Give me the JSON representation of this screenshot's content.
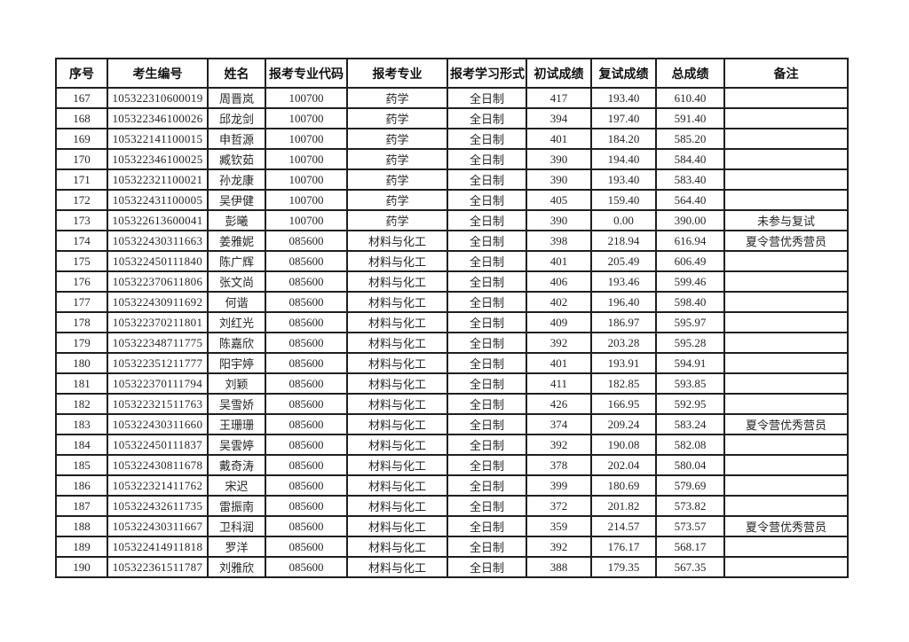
{
  "colors": {
    "background": "#ffffff",
    "border": "#1f1f1f",
    "text": "#262626",
    "header_text": "#111111"
  },
  "table": {
    "headers": [
      "序号",
      "考生编号",
      "姓名",
      "报考专业代码",
      "报考专业",
      "报考学习形式",
      "初试成绩",
      "复试成绩",
      "总成绩",
      "备注"
    ],
    "rows": [
      [
        "167",
        "105322310600019",
        "周晋岚",
        "100700",
        "药学",
        "全日制",
        "417",
        "193.40",
        "610.40",
        ""
      ],
      [
        "168",
        "105322346100026",
        "邱龙剑",
        "100700",
        "药学",
        "全日制",
        "394",
        "197.40",
        "591.40",
        ""
      ],
      [
        "169",
        "105322141100015",
        "申哲源",
        "100700",
        "药学",
        "全日制",
        "401",
        "184.20",
        "585.20",
        ""
      ],
      [
        "170",
        "105322346100025",
        "臧钦茹",
        "100700",
        "药学",
        "全日制",
        "390",
        "194.40",
        "584.40",
        ""
      ],
      [
        "171",
        "105322321100021",
        "孙龙康",
        "100700",
        "药学",
        "全日制",
        "390",
        "193.40",
        "583.40",
        ""
      ],
      [
        "172",
        "105322431100005",
        "吴伊健",
        "100700",
        "药学",
        "全日制",
        "405",
        "159.40",
        "564.40",
        ""
      ],
      [
        "173",
        "105322613600041",
        "彭曦",
        "100700",
        "药学",
        "全日制",
        "390",
        "0.00",
        "390.00",
        "未参与复试"
      ],
      [
        "174",
        "105322430311663",
        "姜雅妮",
        "085600",
        "材料与化工",
        "全日制",
        "398",
        "218.94",
        "616.94",
        "夏令营优秀营员"
      ],
      [
        "175",
        "105322450111840",
        "陈广辉",
        "085600",
        "材料与化工",
        "全日制",
        "401",
        "205.49",
        "606.49",
        ""
      ],
      [
        "176",
        "105322370611806",
        "张文尚",
        "085600",
        "材料与化工",
        "全日制",
        "406",
        "193.46",
        "599.46",
        ""
      ],
      [
        "177",
        "105322430911692",
        "何谐",
        "085600",
        "材料与化工",
        "全日制",
        "402",
        "196.40",
        "598.40",
        ""
      ],
      [
        "178",
        "105322370211801",
        "刘红光",
        "085600",
        "材料与化工",
        "全日制",
        "409",
        "186.97",
        "595.97",
        ""
      ],
      [
        "179",
        "105322348711775",
        "陈嘉欣",
        "085600",
        "材料与化工",
        "全日制",
        "392",
        "203.28",
        "595.28",
        ""
      ],
      [
        "180",
        "105322351211777",
        "阳宇婷",
        "085600",
        "材料与化工",
        "全日制",
        "401",
        "193.91",
        "594.91",
        ""
      ],
      [
        "181",
        "105322370111794",
        "刘颖",
        "085600",
        "材料与化工",
        "全日制",
        "411",
        "182.85",
        "593.85",
        ""
      ],
      [
        "182",
        "105322321511763",
        "吴雪娇",
        "085600",
        "材料与化工",
        "全日制",
        "426",
        "166.95",
        "592.95",
        ""
      ],
      [
        "183",
        "105322430311660",
        "王珊珊",
        "085600",
        "材料与化工",
        "全日制",
        "374",
        "209.24",
        "583.24",
        "夏令营优秀营员"
      ],
      [
        "184",
        "105322450111837",
        "吴雲婷",
        "085600",
        "材料与化工",
        "全日制",
        "392",
        "190.08",
        "582.08",
        ""
      ],
      [
        "185",
        "105322430811678",
        "戴奇涛",
        "085600",
        "材料与化工",
        "全日制",
        "378",
        "202.04",
        "580.04",
        ""
      ],
      [
        "186",
        "105322321411762",
        "宋迟",
        "085600",
        "材料与化工",
        "全日制",
        "399",
        "180.69",
        "579.69",
        ""
      ],
      [
        "187",
        "105322432611735",
        "雷振南",
        "085600",
        "材料与化工",
        "全日制",
        "372",
        "201.82",
        "573.82",
        ""
      ],
      [
        "188",
        "105322430311667",
        "卫科润",
        "085600",
        "材料与化工",
        "全日制",
        "359",
        "214.57",
        "573.57",
        "夏令营优秀营员"
      ],
      [
        "189",
        "105322414911818",
        "罗洋",
        "085600",
        "材料与化工",
        "全日制",
        "392",
        "176.17",
        "568.17",
        ""
      ],
      [
        "190",
        "105322361511787",
        "刘雅欣",
        "085600",
        "材料与化工",
        "全日制",
        "388",
        "179.35",
        "567.35",
        ""
      ]
    ]
  }
}
